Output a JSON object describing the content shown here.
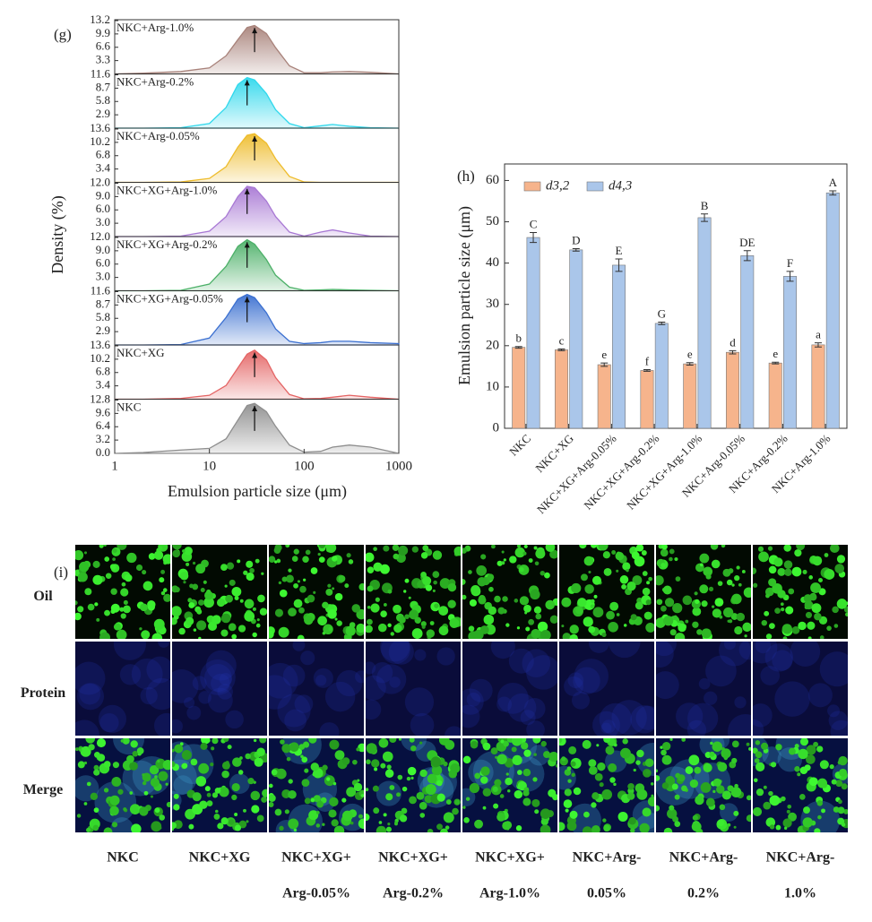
{
  "chart_data": [
    {
      "type": "area",
      "panel_label": "(g)",
      "ylabel": "Density (%)",
      "xlabel": "Emulsion particle size (μm)",
      "xscale": "log",
      "xlim": [
        1,
        1000
      ],
      "xticks": [
        1,
        10,
        100,
        1000
      ],
      "x": [
        1,
        2,
        5,
        10,
        15,
        20,
        25,
        30,
        40,
        50,
        70,
        100,
        150,
        200,
        300,
        500,
        1000
      ],
      "panels": [
        {
          "name": "NKC+Arg-1.0%",
          "color": "#a8827a",
          "ylim": [
            0,
            13.2
          ],
          "yticks": [
            3.3,
            6.6,
            9.9,
            13.2
          ],
          "values": [
            0,
            0.2,
            0.6,
            1.5,
            4.5,
            8.5,
            11.5,
            12.0,
            10,
            6.5,
            2,
            0.3,
            0.3,
            0.5,
            0.6,
            0.4,
            0
          ]
        },
        {
          "name": "NKC+Arg-0.2%",
          "color": "#2fd8ec",
          "ylim": [
            0,
            11.6
          ],
          "yticks": [
            2.9,
            5.8,
            8.7,
            11.6
          ],
          "values": [
            0,
            0,
            0.1,
            1,
            4.5,
            9.5,
            11,
            10.5,
            7.5,
            4,
            1,
            0.1,
            0.5,
            0.8,
            0.4,
            0.1,
            0
          ]
        },
        {
          "name": "NKC+Arg-0.05%",
          "color": "#eebc2c",
          "ylim": [
            0,
            13.6
          ],
          "yticks": [
            3.4,
            6.8,
            10.2,
            13.6
          ],
          "values": [
            0,
            0,
            0.1,
            1,
            4,
            9,
            12,
            12.4,
            10,
            6,
            1.5,
            0.1,
            0,
            0,
            0,
            0,
            0
          ]
        },
        {
          "name": "NKC+XG+Arg-1.0%",
          "color": "#a878d4",
          "ylim": [
            0,
            12
          ],
          "yticks": [
            {
              "value": 3,
              "label": "3.0"
            },
            {
              "value": 6,
              "label": "6.0"
            },
            {
              "value": 9,
              "label": "9.0"
            },
            {
              "value": 12,
              "label": "12.0"
            }
          ],
          "values": [
            0,
            0,
            0.1,
            1.2,
            4.5,
            9,
            11.3,
            11,
            8,
            4.5,
            1,
            0.1,
            1,
            1.5,
            0.8,
            0.1,
            0
          ]
        },
        {
          "name": "NKC+XG+Arg-0.2%",
          "color": "#4cb068",
          "ylim": [
            0,
            12
          ],
          "yticks": [
            {
              "value": 3,
              "label": "3.0"
            },
            {
              "value": 6,
              "label": "6.0"
            },
            {
              "value": 9,
              "label": "9.0"
            },
            {
              "value": 12,
              "label": "12.0"
            }
          ],
          "values": [
            0,
            0,
            0.1,
            1.5,
            5.5,
            10,
            11.5,
            10.5,
            7,
            3.5,
            0.8,
            0.1,
            0.2,
            0.3,
            0.2,
            0.1,
            0
          ]
        },
        {
          "name": "NKC+XG+Arg-0.05%",
          "color": "#3a6fd0",
          "ylim": [
            0,
            11.6
          ],
          "yticks": [
            2.9,
            5.8,
            8.7,
            11.6
          ],
          "values": [
            0,
            0,
            0.1,
            1.5,
            6,
            10,
            11,
            10.3,
            7,
            3.5,
            0.8,
            0.3,
            0.5,
            0.8,
            0.8,
            0.5,
            0.3
          ]
        },
        {
          "name": "NKC+XG",
          "color": "#e46464",
          "ylim": [
            0,
            13.6
          ],
          "yticks": [
            3.4,
            6.8,
            10.2,
            13.6
          ],
          "values": [
            0,
            0,
            0.2,
            1,
            3.5,
            8,
            11.5,
            12.5,
            10,
            5.5,
            1.2,
            0.1,
            0.2,
            0.5,
            1,
            0.5,
            0
          ]
        },
        {
          "name": "NKC",
          "color": "#8e8e8e",
          "ylim": [
            0,
            12.8
          ],
          "yticks": [
            {
              "value": 0,
              "label": "0.0"
            },
            3.2,
            6.4,
            9.6,
            12.8
          ],
          "values": [
            0,
            0.2,
            0.8,
            1.2,
            3.5,
            8,
            11.5,
            12,
            10,
            6.5,
            2,
            0.3,
            0.5,
            1.5,
            2,
            1.5,
            0
          ]
        }
      ]
    },
    {
      "type": "bar",
      "panel_label": "(h)",
      "ylabel": "Emulsion particle size (μm)",
      "categories": [
        "NKC",
        "NKC+XG",
        "NKC+XG+Arg-0.05%",
        "NKC+XG+Arg-0.2%",
        "NKC+XG+Arg-1.0%",
        "NKC+Arg-0.05%",
        "NKC+Arg-0.2%",
        "NKC+Arg-1.0%"
      ],
      "ylim": [
        0,
        64
      ],
      "yticks": [
        0,
        10,
        20,
        30,
        40,
        50,
        60
      ],
      "legend": "upper left",
      "series": [
        {
          "name": "d3,2",
          "color": "#f6b48c",
          "values": [
            19.6,
            19,
            15.4,
            14,
            15.6,
            18.4,
            15.8,
            20.2
          ],
          "errors": [
            0.2,
            0.2,
            0.4,
            0.2,
            0.3,
            0.4,
            0.2,
            0.5
          ],
          "significance": [
            "b",
            "c",
            "e",
            "f",
            "e",
            "d",
            "e",
            "a"
          ]
        },
        {
          "name": "d4,3",
          "color": "#aac6ea",
          "values": [
            46.2,
            43.2,
            39.5,
            25.4,
            51,
            41.8,
            36.8,
            57
          ],
          "errors": [
            1.2,
            0.3,
            1.5,
            0.3,
            0.9,
            1.2,
            1.2,
            0.5
          ],
          "significance": [
            "C",
            "D",
            "E",
            "G",
            "B",
            "DE",
            "F",
            "A"
          ]
        }
      ]
    }
  ],
  "micrographs": {
    "panel_label": "(i)",
    "rows": [
      "Oil",
      "Protein",
      "Merge"
    ],
    "columns": [
      [
        "NKC"
      ],
      [
        "NKC+XG"
      ],
      [
        "NKC+XG+",
        "Arg-0.05%"
      ],
      [
        "NKC+XG+",
        "Arg-0.2%"
      ],
      [
        "NKC+XG+",
        "Arg-1.0%"
      ],
      [
        "NKC+Arg-",
        "0.05%"
      ],
      [
        "NKC+Arg-",
        "0.2%"
      ],
      [
        "NKC+Arg-",
        "1.0%"
      ]
    ]
  }
}
